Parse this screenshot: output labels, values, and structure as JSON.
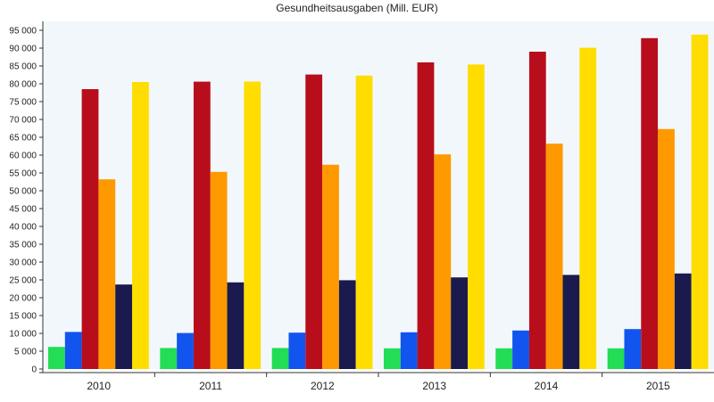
{
  "chart_data": {
    "type": "bar",
    "title": "Gesundheitsausgaben (Mill. EUR)",
    "xlabel": "",
    "ylabel": "",
    "categories": [
      "2010",
      "2011",
      "2012",
      "2013",
      "2014",
      "2015"
    ],
    "ylim": [
      0,
      97500
    ],
    "yticks": [
      0,
      5000,
      10000,
      15000,
      20000,
      25000,
      30000,
      35000,
      40000,
      45000,
      50000,
      55000,
      60000,
      65000,
      70000,
      75000,
      80000,
      85000,
      90000,
      95000
    ],
    "ytick_labels": [
      "0",
      "5 000",
      "10 000",
      "15 000",
      "20 000",
      "25 000",
      "30 000",
      "35 000",
      "40 000",
      "45 000",
      "50 000",
      "55 000",
      "60 000",
      "65 000",
      "70 000",
      "75 000",
      "80 000",
      "85 000",
      "90 000",
      "95 000"
    ],
    "grid": false,
    "legend": "none",
    "background": "#f2f7fb",
    "series": [
      {
        "color": "#22dd55",
        "values": [
          6200,
          5900,
          5900,
          5800,
          5800,
          5800
        ]
      },
      {
        "color": "#1155ee",
        "values": [
          10400,
          10100,
          10200,
          10300,
          10800,
          11200
        ]
      },
      {
        "color": "#b80e1c",
        "values": [
          78500,
          80600,
          82600,
          86000,
          89000,
          92800
        ]
      },
      {
        "color": "#ff9900",
        "values": [
          53200,
          55300,
          57300,
          60200,
          63200,
          67300
        ]
      },
      {
        "color": "#1a1a4e",
        "values": [
          23700,
          24300,
          24900,
          25700,
          26400,
          26800
        ]
      },
      {
        "color": "#ffdd00",
        "values": [
          80500,
          80600,
          82300,
          85400,
          90100,
          93800
        ]
      }
    ]
  }
}
